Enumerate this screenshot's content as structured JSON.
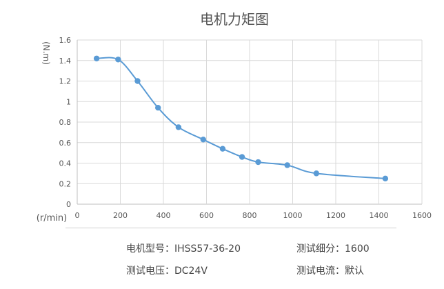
{
  "chart_data": {
    "type": "line",
    "title": "电机力矩图",
    "ylabel": "(N.m)",
    "xlabel": "(r/min)",
    "xlim": [
      0,
      1600
    ],
    "ylim": [
      0,
      1.6
    ],
    "xticks": [
      0,
      200,
      400,
      600,
      800,
      1000,
      1200,
      1400,
      1600
    ],
    "yticks": [
      0,
      0.2,
      0.4,
      0.6,
      0.8,
      1,
      1.2,
      1.4,
      1.6
    ],
    "grid": true,
    "series": [
      {
        "x": [
          90,
          190,
          280,
          375,
          470,
          585,
          675,
          765,
          840,
          975,
          1110,
          1430
        ],
        "y": [
          1.42,
          1.41,
          1.2,
          0.94,
          0.75,
          0.63,
          0.54,
          0.46,
          0.41,
          0.38,
          0.3,
          0.25
        ],
        "color": "#5a9bd5"
      }
    ]
  },
  "footer": {
    "model_label": "电机型号：IHSS57-36-20",
    "subdivision_label": "测试细分：1600",
    "voltage_label": "测试电压：DC24V",
    "current_label": "测试电流：默认"
  }
}
